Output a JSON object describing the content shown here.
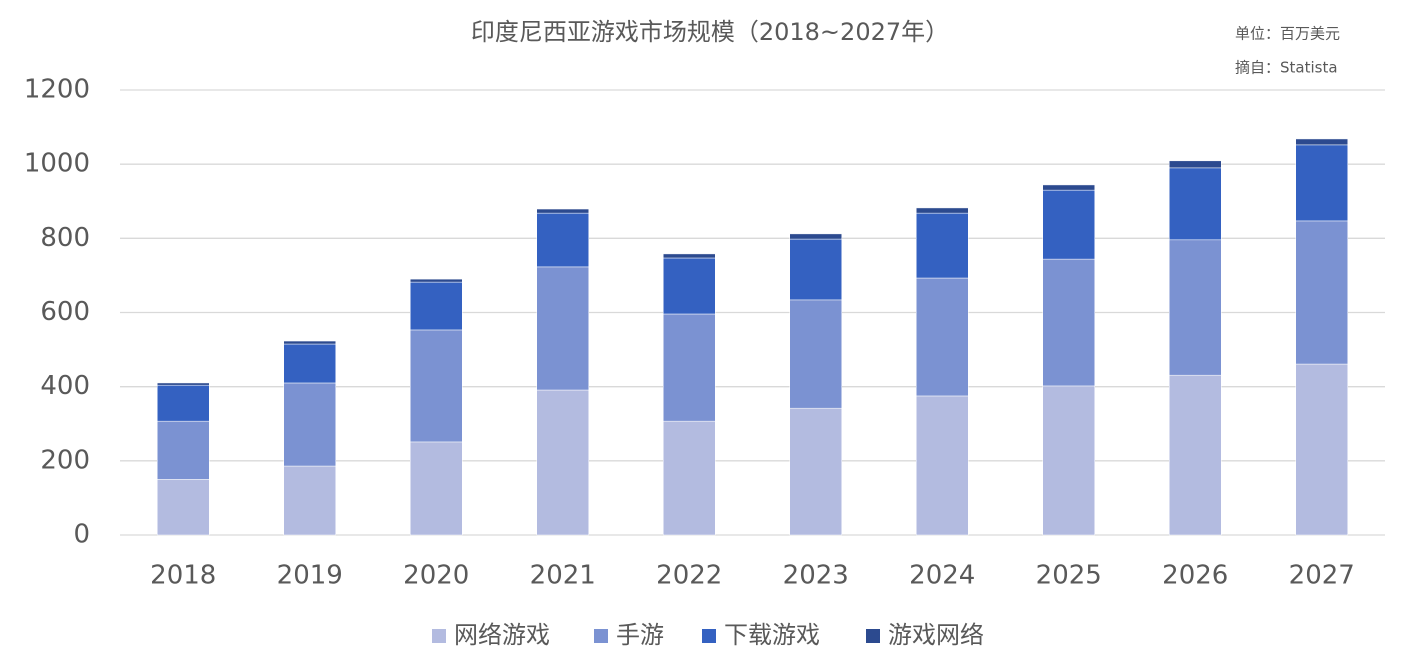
{
  "chart_data": {
    "type": "stacked_bar",
    "title": "印度尼西亚游戏市场规模（2018~2027年）",
    "annotations": [
      "单位：百万美元",
      "摘自：Statista"
    ],
    "categories": [
      "2018",
      "2019",
      "2020",
      "2021",
      "2022",
      "2023",
      "2024",
      "2025",
      "2026",
      "2027"
    ],
    "series": [
      {
        "name": "网络游戏",
        "color": "#b3bbe0",
        "values": [
          150,
          186,
          251,
          391,
          307,
          342,
          375,
          402,
          431,
          461
        ]
      },
      {
        "name": "手游",
        "color": "#7b92d2",
        "values": [
          157,
          224,
          302,
          332,
          289,
          292,
          318,
          342,
          365,
          386
        ]
      },
      {
        "name": "下载游戏",
        "color": "#3461c1",
        "values": [
          97,
          105,
          129,
          145,
          151,
          164,
          175,
          186,
          194,
          205
        ]
      },
      {
        "name": "游戏网络",
        "color": "#2c4a8f",
        "values": [
          6,
          8,
          8,
          11,
          11,
          14,
          14,
          14,
          19,
          16
        ]
      }
    ],
    "ylim": [
      0,
      1200
    ],
    "yticks": [
      0,
      200,
      400,
      600,
      800,
      1000,
      1200
    ],
    "grid": true,
    "legend": "bottom"
  }
}
